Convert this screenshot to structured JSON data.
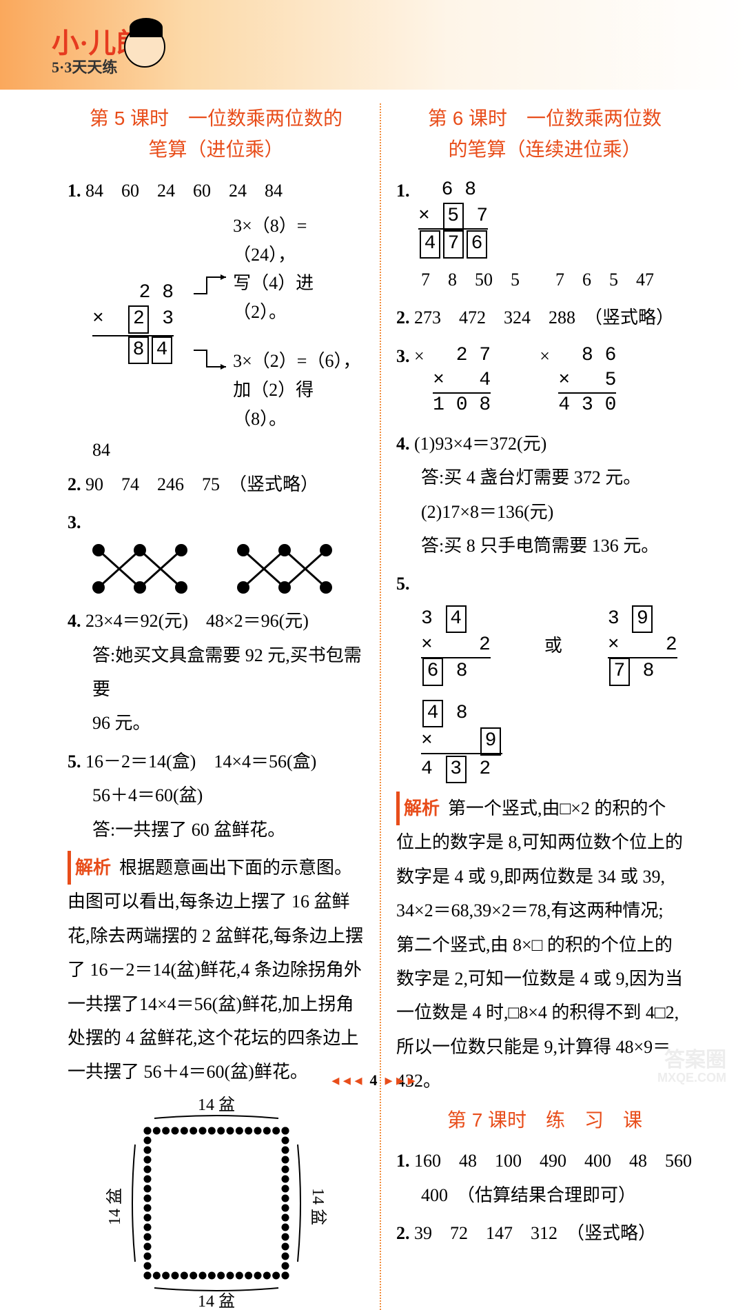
{
  "brand": {
    "logo": "小·儿郎",
    "sub": "5·3天天练"
  },
  "page_number": "4",
  "watermark": {
    "l1": "答案圈",
    "l2": "MXQE.COM"
  },
  "left": {
    "title1": "第 5 课时　一位数乘两位数的",
    "title2": "笔算（进位乘）",
    "q1_no": "1.",
    "q1_row": "84　60　24　60　24　84",
    "q1_vert": {
      "r1": "  2 8",
      "r2": "×  ",
      "r2_boxa": "2",
      "r2_tail": " 3",
      "r3_boxa": "8",
      "r3_boxb": "4"
    },
    "q1_note1": "3×（8）=（24），",
    "q1_note2": "写（4）进（2）。",
    "q1_note3": "3×（2）=（6），",
    "q1_note4": "加（2）得（8）。",
    "q1_tail": "84",
    "q2_no": "2.",
    "q2": "90　74　246　75　（竖式略）",
    "q3_no": "3.",
    "q4_no": "4.",
    "q4_l1": "23×4＝92(元)　48×2＝96(元)",
    "q4_l2": "答:她买文具盒需要 92 元,买书包需要",
    "q4_l3": "96 元。",
    "q5_no": "5.",
    "q5_l1": "16－2＝14(盒)　14×4＝56(盒)",
    "q5_l2": "56＋4＝60(盆)",
    "q5_l3": "答:一共摆了 60 盆鲜花。",
    "jx_label": "解析",
    "jx_p1": "根据题意画出下面的示意图。",
    "jx_p2": "由图可以看出,每条边上摆了 16 盆鲜",
    "jx_p3": "花,除去两端摆的 2 盆鲜花,每条边上摆",
    "jx_p4": "了 16－2＝14(盆)鲜花,4 条边除拐角外",
    "jx_p5": "一共摆了14×4＝56(盆)鲜花,加上拐角",
    "jx_p6": "处摆的 4 盆鲜花,这个花坛的四条边上",
    "jx_p7": "一共摆了 56＋4＝60(盆)鲜花。",
    "diagram_label": "14 盆"
  },
  "right": {
    "title1": "第 6 课时　一位数乘两位数",
    "title2": "的笔算（连续进位乘）",
    "q1_no": "1.",
    "q1_vert": {
      "r1": "  6 8",
      "r2_pre": "× ",
      "r2_box": "5",
      "r2_tail": " 7",
      "r3_a": "4",
      "r3_b": "7",
      "r3_c": "6"
    },
    "q1_row": "7　8　50　5　　7　6　5　47",
    "q2_no": "2.",
    "q2": "273　472　324　288　（竖式略）",
    "q3_no": "3.",
    "q3_a": {
      "sym": "×",
      "r1": "  2 7",
      "r2": "×   4",
      "r3": "1 0 8"
    },
    "q3_b": {
      "sym": "×",
      "r1": "  8 6",
      "r2": "×   5",
      "r3": "4 3 0"
    },
    "q4_no": "4.",
    "q4_l1": "(1)93×4＝372(元)",
    "q4_l2": "答:买 4 盏台灯需要 372 元。",
    "q4_l3": "(2)17×8＝136(元)",
    "q4_l4": "答:买 8 只手电筒需要 136 元。",
    "q5_no": "5.",
    "q5_a": {
      "top_pre": "3 ",
      "top_box": "4",
      "mid": "×    2",
      "bot_box": "6",
      "bot_tail": " 8"
    },
    "q5_or": "或",
    "q5_b": {
      "top_pre": "3 ",
      "top_box": "9",
      "mid": "×    2",
      "bot_box": "7",
      "bot_tail": " 8"
    },
    "q5_c": {
      "top_box": "4",
      "top_tail": " 8",
      "mid_pre": "×    ",
      "mid_box": "9",
      "bot_pre": "4 ",
      "bot_box": "3",
      "bot_tail": " 2"
    },
    "jx_label": "解析",
    "jx_p1": "第一个竖式,由□×2 的积的个",
    "jx_p2": "位上的数字是 8,可知两位数个位上的",
    "jx_p3": "数字是 4 或 9,即两位数是 34 或 39,",
    "jx_p4": "34×2＝68,39×2＝78,有这两种情况;",
    "jx_p5": "第二个竖式,由 8×□ 的积的个位上的",
    "jx_p6": "数字是 2,可知一位数是 4 或 9,因为当",
    "jx_p7": "一位数是 4 时,□8×4 的积得不到 4□2,",
    "jx_p8": "所以一位数只能是 9,计算得 48×9＝432。",
    "sec7_title": "第 7 课时　练　习　课",
    "s7_q1_no": "1.",
    "s7_q1_l1": "160　48　100　490　400　48　560",
    "s7_q1_l2": "400　（估算结果合理即可）",
    "s7_q2_no": "2.",
    "s7_q2": "39　72　147　312　（竖式略）"
  }
}
